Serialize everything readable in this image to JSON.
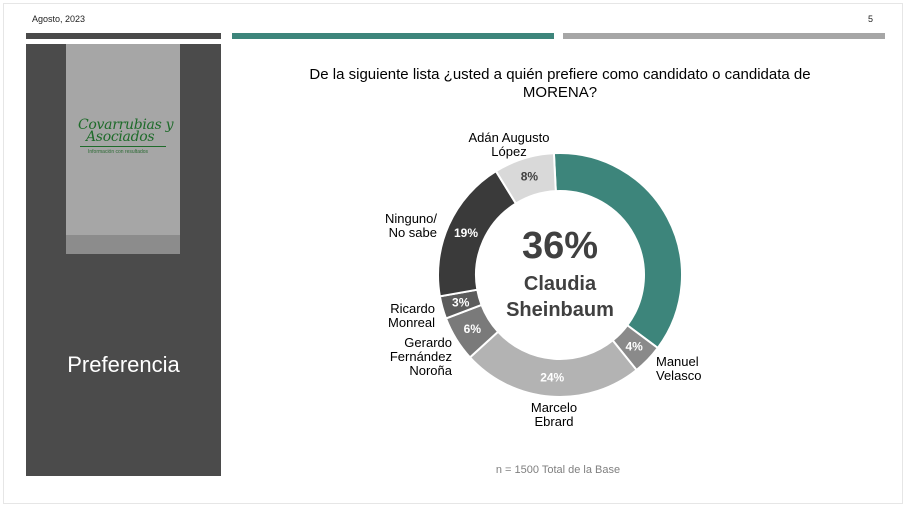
{
  "header": {
    "date": "Agosto, 2023",
    "page_number": "5"
  },
  "sidebar": {
    "logo": {
      "line1": "Covarrubias y",
      "line2": "Asociados",
      "tagline": "Información con resultados"
    },
    "section_title": "Preferencia"
  },
  "colors": {
    "teal": "#3d857b",
    "dark": "#3a3a3a",
    "medium_gray": "#7f7f7f",
    "light_gray": "#b3b3b3",
    "pale_gray": "#d9d9d9",
    "panel": "#4b4b4b"
  },
  "chart_data": {
    "type": "pie",
    "title": "De la siguiente lista ¿usted a quién prefiere como candidato o candidata de MORENA?",
    "center_value": "36%",
    "center_label_line1": "Claudia",
    "center_label_line2": "Sheinbaum",
    "slices": [
      {
        "name": "Claudia Sheinbaum",
        "value": 36,
        "label": "",
        "color": "#3d857b"
      },
      {
        "name": "Manuel Velasco",
        "value": 4,
        "label": "4%",
        "color": "#8a8a8a"
      },
      {
        "name": "Marcelo Ebrard",
        "value": 24,
        "label": "24%",
        "color": "#b3b3b3"
      },
      {
        "name": "Gerardo Fernández Noroña",
        "value": 6,
        "label": "6%",
        "color": "#7a7a7a"
      },
      {
        "name": "Ricardo Monreal",
        "value": 3,
        "label": "3%",
        "color": "#5c5c5c"
      },
      {
        "name": "Ninguno/ No sabe",
        "value": 19,
        "label": "19%",
        "color": "#3a3a3a"
      },
      {
        "name": "Adán Augusto López",
        "value": 8,
        "label": "8%",
        "color": "#d9d9d9"
      }
    ],
    "external_labels": [
      [
        "Manuel",
        "Velasco"
      ],
      [
        "Marcelo",
        "Ebrard"
      ],
      [
        "Gerardo",
        "Fernández",
        "Noroña"
      ],
      [
        "Ricardo",
        "Monreal"
      ],
      [
        "Ninguno/",
        "No sabe"
      ],
      [
        "Adán Augusto",
        "López"
      ]
    ],
    "footnote": "n = 1500 Total de la Base"
  }
}
